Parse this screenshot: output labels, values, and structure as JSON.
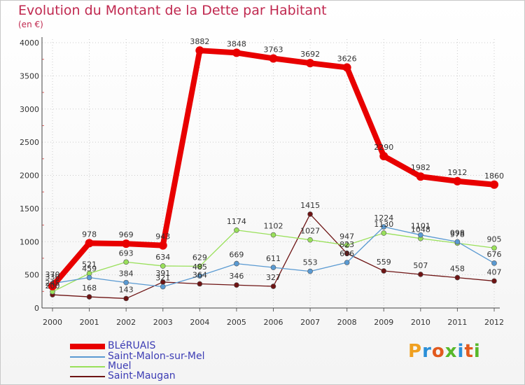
{
  "header": {
    "title": "Evolution du Montant de la Dette par Habitant",
    "unit": "(en €)"
  },
  "chart_data": {
    "type": "line",
    "title": "Evolution du Montant de la Dette par Habitant",
    "ylabel": "(en €)",
    "xlabel": "",
    "ylim": [
      0,
      4000
    ],
    "yticks": [
      "0",
      "500",
      "1000",
      "1500",
      "2000",
      "2500",
      "3000",
      "3500",
      "4000"
    ],
    "x": [
      "2000",
      "2001",
      "2002",
      "2003",
      "2004",
      "2005",
      "2006",
      "2007",
      "2008",
      "2009",
      "2010",
      "2011",
      "2012"
    ],
    "series": [
      {
        "name": "Saint-Maugan",
        "color": "#6e1414",
        "values": [
          200,
          168,
          143,
          391,
          364,
          346,
          327,
          1415,
          823,
          559,
          507,
          458,
          407
        ],
        "labels": [
          "200",
          "168",
          "143",
          "391",
          "364",
          "346",
          "327",
          "1415",
          "823",
          "559",
          "507",
          "458",
          "407"
        ]
      },
      {
        "name": "Muel",
        "color": "#99e05a",
        "values": [
          245,
          521,
          693,
          634,
          629,
          1174,
          1102,
          1027,
          947,
          1130,
          1048,
          978,
          905
        ],
        "labels": [
          "245",
          "521",
          "693",
          "634",
          "629",
          "1174",
          "1102",
          "1027",
          "947",
          "1130",
          "1048",
          "978",
          "905"
        ]
      },
      {
        "name": "Saint-Malon-sur-Mel",
        "color": "#5a9ad2",
        "values": [
          370,
          459,
          384,
          321,
          485,
          669,
          611,
          553,
          686,
          1224,
          1101,
          998,
          676
        ],
        "labels": [
          "370",
          "459",
          "384",
          "321",
          "485",
          "669",
          "611",
          "553",
          "686",
          "1224",
          "1101",
          "998",
          "676"
        ]
      },
      {
        "name": "BLéRUAIS",
        "color": "#e80000",
        "values": [
          330,
          978,
          969,
          943,
          3882,
          3848,
          3763,
          3692,
          3626,
          2290,
          1982,
          1912,
          1860
        ],
        "labels": [
          "330",
          "978",
          "969",
          "943",
          "3882",
          "3848",
          "3763",
          "3692",
          "3626",
          "2290",
          "1982",
          "1912",
          "1860"
        ]
      }
    ]
  },
  "legend": {
    "items": [
      {
        "label": "BLéRUAIS",
        "color": "#e80000"
      },
      {
        "label": "Saint-Malon-sur-Mel",
        "color": "#5a9ad2"
      },
      {
        "label": "Muel",
        "color": "#99e05a"
      },
      {
        "label": "Saint-Maugan",
        "color": "#6e1414"
      }
    ]
  },
  "logo": {
    "text": "Proxiti",
    "colors": [
      "#f0a020",
      "#2a8fd8",
      "#e25a1e",
      "#58b82a",
      "#2a8fd8",
      "#e25a1e",
      "#58b82a"
    ]
  }
}
